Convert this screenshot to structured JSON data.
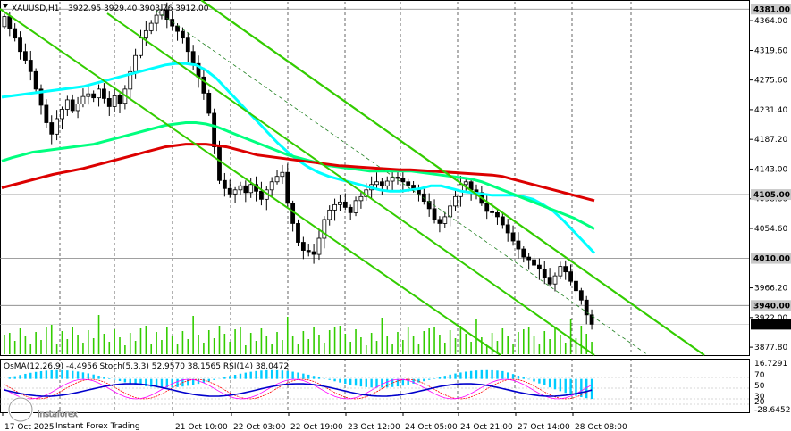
{
  "header": {
    "symbol_label": "XAUUSD,H1",
    "ohlc_label": "3922.95 3929.40 3903.76 3912.00"
  },
  "price_axis": {
    "ticks": [
      "4364.00",
      "4319.60",
      "4275.60",
      "4231.40",
      "4187.20",
      "4143.00",
      "4098.80",
      "4054.60",
      "3966.20",
      "3922.00",
      "3877.80"
    ],
    "tick_values": [
      4364.0,
      4319.6,
      4275.6,
      4231.4,
      4187.2,
      4143.0,
      4098.8,
      4054.6,
      3966.2,
      3922.0,
      3877.8
    ],
    "ylim": [
      3866,
      4392
    ]
  },
  "levels": [
    {
      "label": "4381.00",
      "value": 4381.0,
      "bg": "#c8c8c8",
      "fg": "#000000"
    },
    {
      "label": "4105.00",
      "value": 4105.0,
      "bg": "#c8c8c8",
      "fg": "#000000"
    },
    {
      "label": "4010.00",
      "value": 4010.0,
      "bg": "#c8c8c8",
      "fg": "#000000"
    },
    {
      "label": "3940.00",
      "value": 3940.0,
      "bg": "#c8c8c8",
      "fg": "#000000"
    },
    {
      "label": "3912.00",
      "value": 3912.0,
      "bg": "#000000",
      "fg": "#ffffff"
    }
  ],
  "time_axis": {
    "labels": [
      "17 Oct 2025",
      "21 Oct 10:00",
      "22 Oct 03:00",
      "22 Oct 19:00",
      "23 Oct 12:00",
      "24 Oct 05:00",
      "24 Oct 21:00",
      "27 Oct 14:00",
      "28 Oct 08:00"
    ]
  },
  "indicator_panel": {
    "label": "OsMA(12,26,9) -4.4956  Stoch(5,3,3) 52.9570 38.1565  RSI(14) 38.0472",
    "ticks": [
      "16.7291",
      "70",
      "50",
      "30",
      "20",
      "-28.6452"
    ],
    "tick_values": [
      16.7291,
      70,
      50,
      30,
      20,
      -28.6452
    ]
  },
  "watermark": {
    "brand": "instaforex",
    "tagline": "Instant Forex Trading"
  },
  "colors": {
    "background": "#ffffff",
    "candle": "#000000",
    "grid": "#000000",
    "ema_fast": "#00ffff",
    "ema_mid": "#00ff7f",
    "ema_slow": "#dc0000",
    "channel": "#33cc00",
    "volume": "#33cc00",
    "osma": "#00ccff",
    "stoch_main": "#0000cc",
    "stoch_signal": "#ff0000",
    "rsi": "#ff00ff"
  },
  "chart_data": {
    "type": "candlestick",
    "symbol": "XAUUSD",
    "timeframe": "H1",
    "ylim": [
      3866,
      4392
    ],
    "closes": [
      4370,
      4352,
      4338,
      4318,
      4305,
      4288,
      4262,
      4238,
      4212,
      4195,
      4218,
      4232,
      4246,
      4230,
      4240,
      4251,
      4255,
      4249,
      4262,
      4248,
      4236,
      4252,
      4241,
      4262,
      4288,
      4312,
      4338,
      4349,
      4360,
      4372,
      4380,
      4366,
      4356,
      4348,
      4338,
      4318,
      4300,
      4280,
      4256,
      4226,
      4176,
      4126,
      4114,
      4106,
      4112,
      4118,
      4108,
      4120,
      4110,
      4098,
      4112,
      4124,
      4132,
      4138,
      4092,
      4062,
      4034,
      4022,
      4020,
      4016,
      4040,
      4068,
      4082,
      4090,
      4094,
      4086,
      4078,
      4096,
      4102,
      4112,
      4120,
      4124,
      4118,
      4125,
      4131,
      4129,
      4124,
      4119,
      4112,
      4106,
      4095,
      4084,
      4068,
      4062,
      4072,
      4088,
      4102,
      4120,
      4124,
      4112,
      4108,
      4092,
      4080,
      4078,
      4072,
      4060,
      4048,
      4036,
      4024,
      4012,
      4008,
      4000,
      3994,
      3982,
      3972,
      3984,
      3998,
      3990,
      3976,
      3962,
      3948,
      3926,
      3912
    ],
    "levels": [
      4381.0,
      4105.0,
      4010.0,
      3940.0
    ],
    "last_price": 3912.0,
    "series": [
      {
        "values": [
          4250,
          4252,
          4254,
          4256,
          4258,
          4260,
          4262,
          4264,
          4266,
          4270,
          4274,
          4278,
          4282,
          4286,
          4290,
          4294,
          4298,
          4300,
          4300,
          4298,
          4290,
          4278,
          4262,
          4246,
          4230,
          4214,
          4198,
          4182,
          4168,
          4156,
          4146,
          4138,
          4132,
          4128,
          4124,
          4120,
          4116,
          4112,
          4110,
          4110,
          4112,
          4114,
          4118,
          4118,
          4114,
          4110,
          4108,
          4106,
          4104,
          4104,
          4104,
          4102,
          4098,
          4090,
          4080,
          4066,
          4050,
          4034,
          4018
        ]
      },
      {
        "values": [
          4155,
          4160,
          4164,
          4168,
          4170,
          4172,
          4174,
          4176,
          4178,
          4180,
          4184,
          4188,
          4192,
          4196,
          4200,
          4204,
          4208,
          4210,
          4212,
          4212,
          4210,
          4206,
          4200,
          4194,
          4188,
          4182,
          4176,
          4170,
          4164,
          4160,
          4156,
          4152,
          4148,
          4146,
          4144,
          4142,
          4140,
          4140,
          4140,
          4140,
          4140,
          4138,
          4136,
          4134,
          4132,
          4130,
          4128,
          4124,
          4118,
          4112,
          4106,
          4100,
          4094,
          4088,
          4082,
          4076,
          4070,
          4062,
          4054
        ]
      },
      {
        "values": [
          4115,
          4119,
          4123,
          4127,
          4131,
          4135,
          4138,
          4141,
          4144,
          4148,
          4152,
          4156,
          4160,
          4164,
          4168,
          4172,
          4176,
          4178,
          4180,
          4180,
          4180,
          4178,
          4176,
          4172,
          4168,
          4164,
          4162,
          4160,
          4158,
          4156,
          4154,
          4152,
          4150,
          4148,
          4147,
          4146,
          4145,
          4144,
          4143,
          4142,
          4142,
          4141,
          4140,
          4139,
          4138,
          4137,
          4136,
          4135,
          4134,
          4132,
          4128,
          4124,
          4120,
          4116,
          4112,
          4108,
          4104,
          4100,
          4096
        ]
      }
    ]
  }
}
